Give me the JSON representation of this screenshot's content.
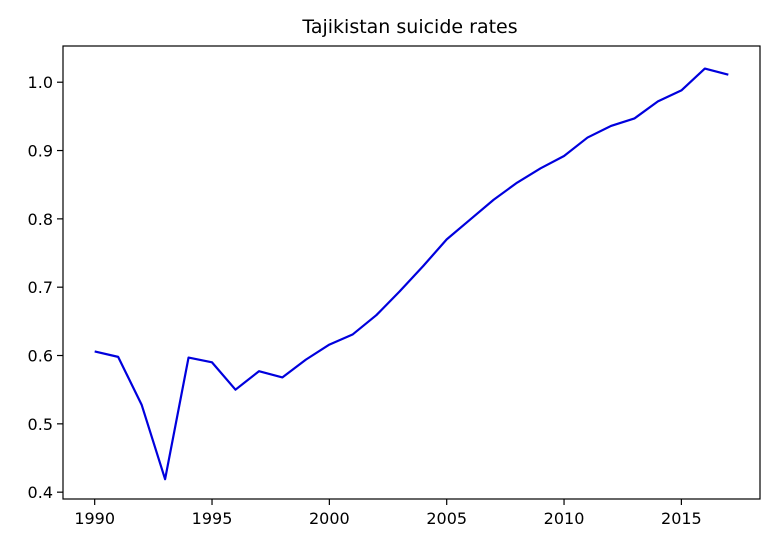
{
  "chart_data": {
    "type": "line",
    "title": "Tajikistan suicide rates",
    "xlabel": "",
    "ylabel": "",
    "xlim": [
      1988.65,
      2018.35
    ],
    "ylim": [
      0.39,
      1.053
    ],
    "xticks": [
      1990,
      1995,
      2000,
      2005,
      2010,
      2015
    ],
    "yticks": [
      0.4,
      0.5,
      0.6,
      0.7,
      0.8,
      0.9,
      1.0
    ],
    "ytick_labels": [
      "0.4",
      "0.5",
      "0.6",
      "0.7",
      "0.8",
      "0.9",
      "1.0"
    ],
    "grid": false,
    "legend": false,
    "line_color": "#0000dd",
    "series": [
      {
        "x": [
          1990,
          1991,
          1992,
          1993,
          1994,
          1995,
          1996,
          1997,
          1998,
          1999,
          2000,
          2001,
          2002,
          2003,
          2004,
          2005,
          2006,
          2007,
          2008,
          2009,
          2010,
          2011,
          2012,
          2013,
          2014,
          2015,
          2016,
          2017
        ],
        "y": [
          0.606,
          0.598,
          0.528,
          0.419,
          0.597,
          0.59,
          0.55,
          0.577,
          0.568,
          0.594,
          0.616,
          0.631,
          0.659,
          0.694,
          0.731,
          0.77,
          0.799,
          0.828,
          0.853,
          0.874,
          0.892,
          0.919,
          0.936,
          0.947,
          0.972,
          0.988,
          1.02,
          1.011
        ]
      }
    ]
  }
}
